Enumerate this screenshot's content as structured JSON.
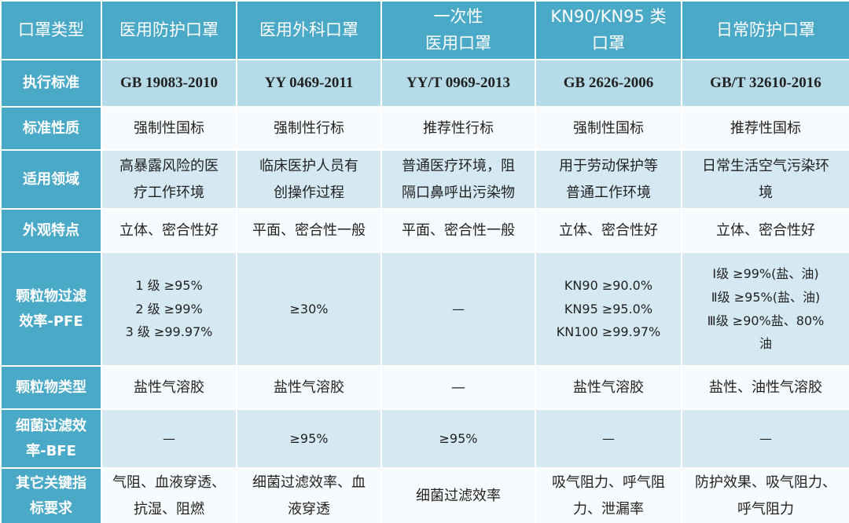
{
  "table": {
    "header": [
      [
        "口罩类型"
      ],
      [
        "医用防护口罩"
      ],
      [
        "医用外科口罩"
      ],
      [
        "一次性",
        "医用口罩"
      ],
      [
        "KN90/KN95 类",
        "口罩"
      ],
      [
        "日常防护口罩"
      ]
    ],
    "rows": [
      [
        [
          "执行标准"
        ],
        [
          "GB 19083-2010"
        ],
        [
          "YY 0469-2011"
        ],
        [
          "YY/T 0969-2013"
        ],
        [
          "GB 2626-2006"
        ],
        [
          "GB/T 32610-2016"
        ]
      ],
      [
        [
          "标准性质"
        ],
        [
          "强制性国标"
        ],
        [
          "强制性行标"
        ],
        [
          "推荐性行标"
        ],
        [
          "强制性国标"
        ],
        [
          "推荐性国标"
        ]
      ],
      [
        [
          "适用领域"
        ],
        [
          "高暴露风险的医",
          "疗工作环境"
        ],
        [
          "临床医护人员有",
          "创操作过程"
        ],
        [
          "普通医疗环境，阻",
          "隔口鼻呼出污染物"
        ],
        [
          "用于劳动保护等",
          "普通工作环境"
        ],
        [
          "日常生活空气污染环",
          "境"
        ]
      ],
      [
        [
          "外观特点"
        ],
        [
          "立体、密合性好"
        ],
        [
          "平面、密合性一般"
        ],
        [
          "平面、密合性一般"
        ],
        [
          "立体、密合性好"
        ],
        [
          "立体、密合性好"
        ]
      ],
      [
        [
          "颗粒物过滤",
          "效率-PFE"
        ],
        [
          "1 级 ≥95%",
          "2 级 ≥99%",
          "3 级 ≥99.97%"
        ],
        [
          "≥30%"
        ],
        [
          "—"
        ],
        [
          "KN90 ≥90.0%",
          "KN95 ≥95.0%",
          "KN100 ≥99.97%"
        ],
        [
          "Ⅰ级 ≥99%(盐、油)",
          "Ⅱ级 ≥95%(盐、油)",
          "Ⅲ级 ≥90%盐、80%",
          "油"
        ]
      ],
      [
        [
          "颗粒物类型"
        ],
        [
          "盐性气溶胶"
        ],
        [
          "盐性气溶胶"
        ],
        [
          "—"
        ],
        [
          "盐性气溶胶"
        ],
        [
          "盐性、油性气溶胶"
        ]
      ],
      [
        [
          "细菌过滤效",
          "率-BFE"
        ],
        [
          "—"
        ],
        [
          "≥95%"
        ],
        [
          "≥95%"
        ],
        [
          "—"
        ],
        [
          "—"
        ]
      ],
      [
        [
          "其它关键指",
          "标要求"
        ],
        [
          "气阻、血液穿透、",
          "抗湿、阻燃"
        ],
        [
          "细菌过滤效率、血",
          "液穿透"
        ],
        [
          "细菌过滤效率"
        ],
        [
          "吸气阻力、呼气阻",
          "力、泄漏率"
        ],
        [
          "防护效果、吸气阻力、",
          "呼气阻力"
        ]
      ]
    ]
  }
}
